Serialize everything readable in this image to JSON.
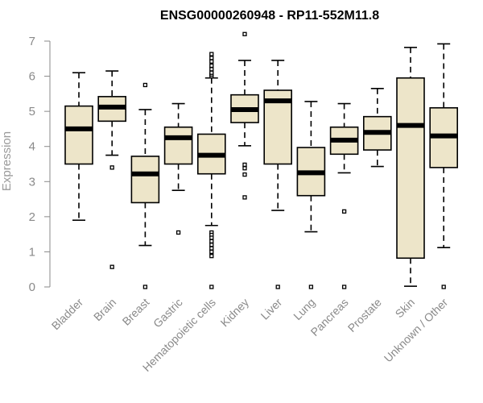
{
  "chart_data": {
    "type": "boxplot",
    "title": "ENSG00000260948 - RP11-552M11.8",
    "xlabel": "",
    "ylabel": "Expression",
    "ylim": [
      0,
      7
    ],
    "yticks": [
      0,
      1,
      2,
      3,
      4,
      5,
      6,
      7
    ],
    "box_fill": "#ede5c9",
    "categories": [
      "Bladder",
      "Brain",
      "Breast",
      "Gastric",
      "Hematopoietic cells",
      "Kidney",
      "Liver",
      "Lung",
      "Pancreas",
      "Prostate",
      "Skin",
      "Unknown / Other"
    ],
    "boxes": [
      {
        "label": "Bladder",
        "whisker_low": 1.9,
        "q1": 3.5,
        "median": 4.5,
        "q3": 5.15,
        "whisker_high": 6.1,
        "outliers": []
      },
      {
        "label": "Brain",
        "whisker_low": 3.75,
        "q1": 4.72,
        "median": 5.12,
        "q3": 5.42,
        "whisker_high": 6.15,
        "outliers": [
          3.4,
          0.57
        ]
      },
      {
        "label": "Breast",
        "whisker_low": 1.18,
        "q1": 2.4,
        "median": 3.22,
        "q3": 3.72,
        "whisker_high": 5.05,
        "outliers": [
          5.75,
          0.0
        ]
      },
      {
        "label": "Gastric",
        "whisker_low": 2.75,
        "q1": 3.5,
        "median": 4.25,
        "q3": 4.55,
        "whisker_high": 5.22,
        "outliers": [
          1.55
        ]
      },
      {
        "label": "Hematopoietic cells",
        "whisker_low": 1.75,
        "q1": 3.22,
        "median": 3.75,
        "q3": 4.35,
        "whisker_high": 5.95,
        "outliers": [
          6.0,
          6.05,
          6.1,
          6.2,
          6.3,
          6.42,
          6.52,
          6.63,
          1.55,
          1.48,
          1.4,
          1.3,
          1.2,
          1.1,
          1.0,
          0.88,
          0.0
        ]
      },
      {
        "label": "Kidney",
        "whisker_low": 4.02,
        "q1": 4.68,
        "median": 5.05,
        "q3": 5.47,
        "whisker_high": 6.45,
        "outliers": [
          7.2,
          3.48,
          3.38,
          3.2,
          2.55
        ]
      },
      {
        "label": "Liver",
        "whisker_low": 2.18,
        "q1": 3.5,
        "median": 5.3,
        "q3": 5.6,
        "whisker_high": 6.45,
        "outliers": [
          0.0
        ]
      },
      {
        "label": "Lung",
        "whisker_low": 1.57,
        "q1": 2.6,
        "median": 3.25,
        "q3": 3.97,
        "whisker_high": 5.28,
        "outliers": [
          0.0
        ]
      },
      {
        "label": "Pancreas",
        "whisker_low": 3.25,
        "q1": 3.78,
        "median": 4.18,
        "q3": 4.55,
        "whisker_high": 5.22,
        "outliers": [
          2.15,
          0.0
        ]
      },
      {
        "label": "Prostate",
        "whisker_low": 3.43,
        "q1": 3.9,
        "median": 4.4,
        "q3": 4.85,
        "whisker_high": 5.65,
        "outliers": []
      },
      {
        "label": "Skin",
        "whisker_low": 0.02,
        "q1": 0.82,
        "median": 4.6,
        "q3": 5.95,
        "whisker_high": 6.82,
        "outliers": []
      },
      {
        "label": "Unknown / Other",
        "whisker_low": 1.12,
        "q1": 3.4,
        "median": 4.3,
        "q3": 5.1,
        "whisker_high": 6.92,
        "outliers": [
          0.0
        ]
      }
    ]
  }
}
